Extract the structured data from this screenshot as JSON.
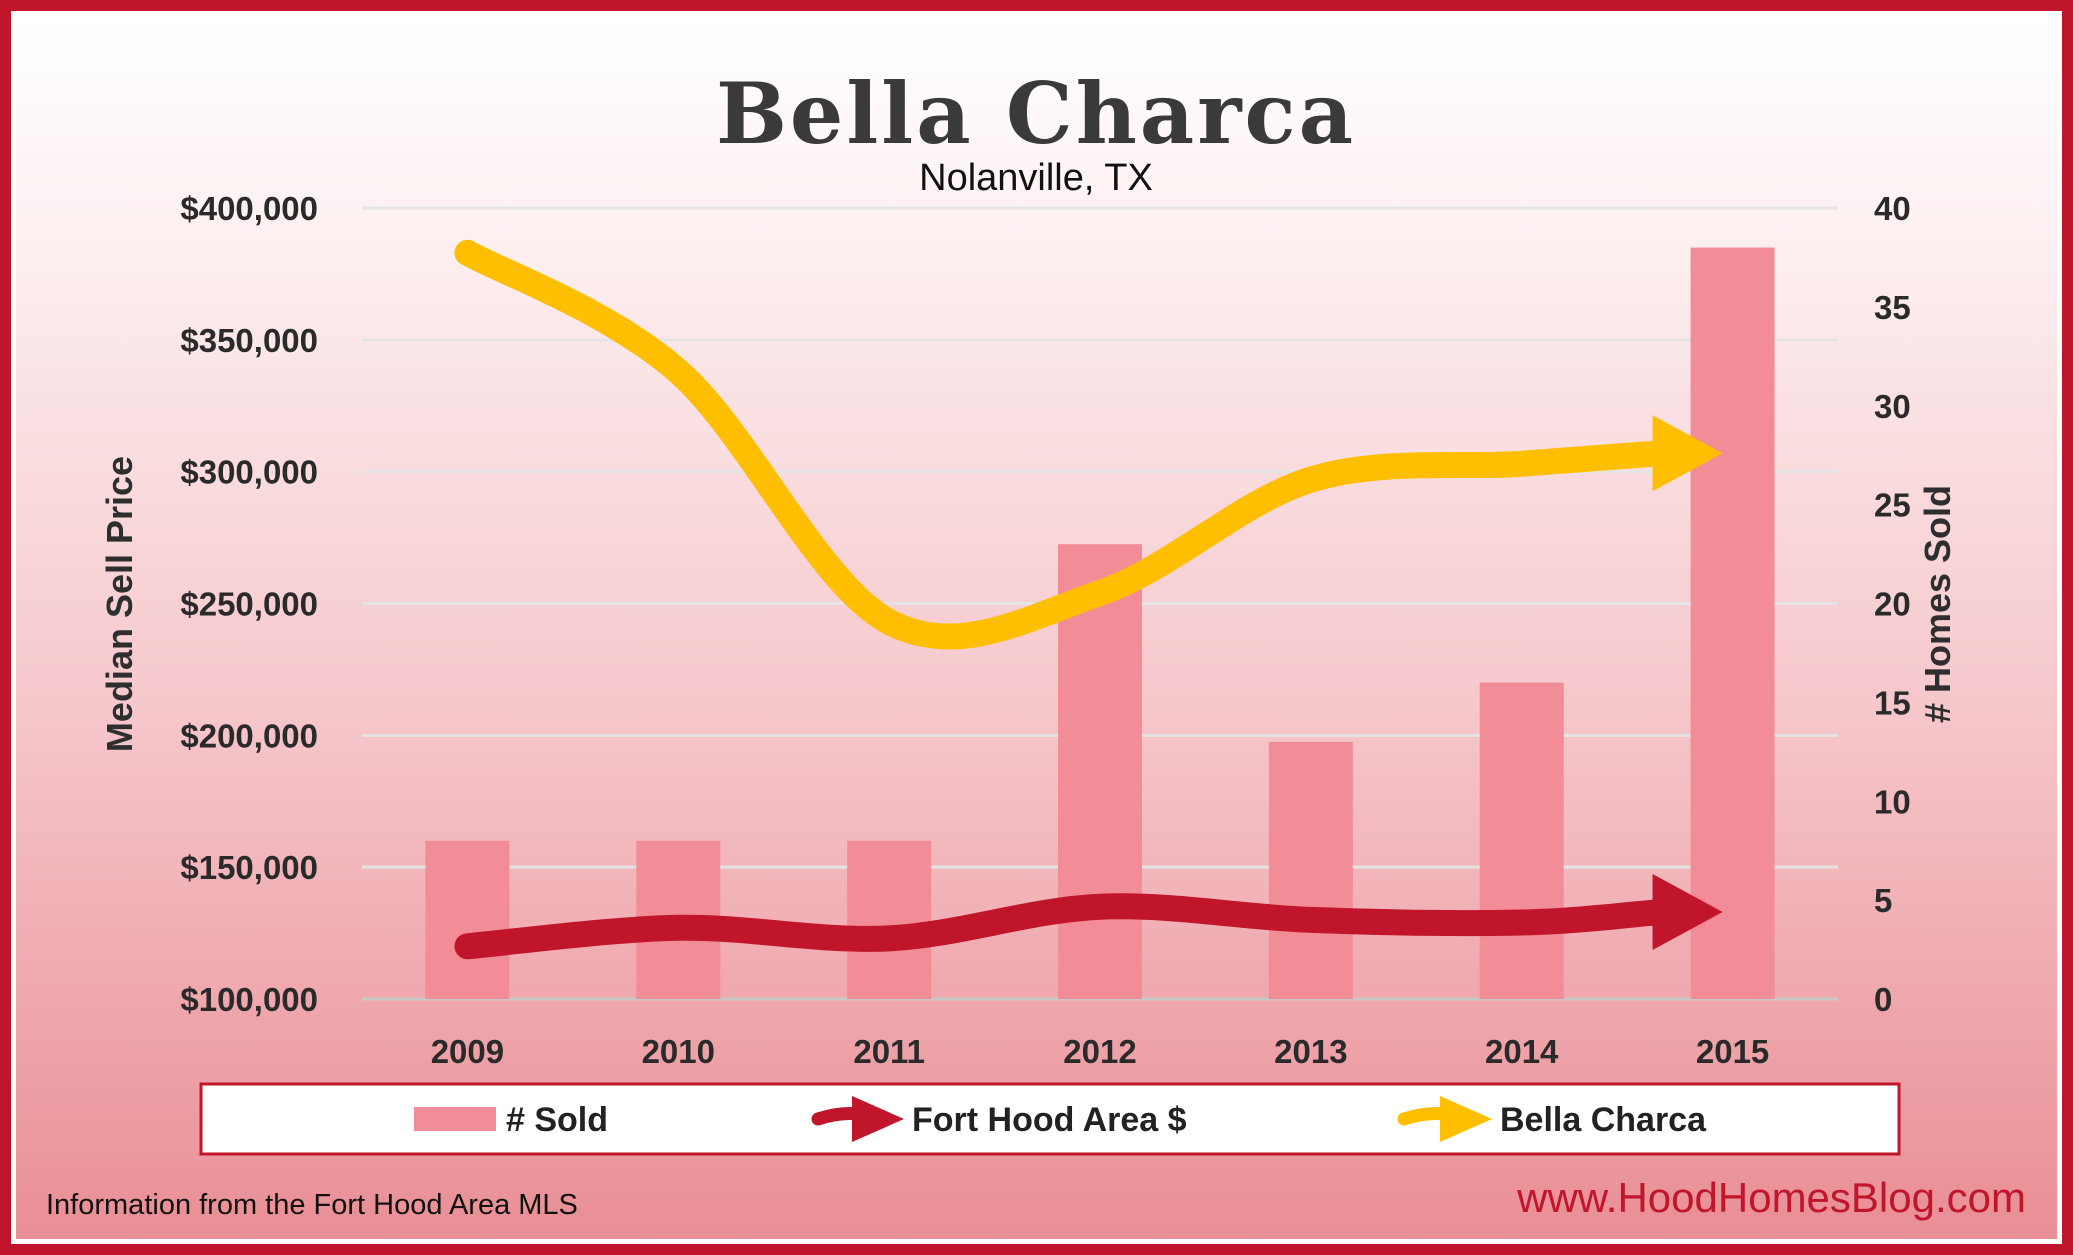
{
  "chart_data": {
    "type": "bar",
    "title": "Bella Charca",
    "subtitle": "Nolanville, TX",
    "categories": [
      "2009",
      "2010",
      "2011",
      "2012",
      "2013",
      "2014",
      "2015"
    ],
    "ylabel_left": "Median Sell Price",
    "ylabel_right": "# Homes Sold",
    "ylim_left": [
      100000,
      400000
    ],
    "ylim_right": [
      0,
      40
    ],
    "left_ticks": [
      "$100,000",
      "$150,000",
      "$200,000",
      "$250,000",
      "$300,000",
      "$350,000",
      "$400,000"
    ],
    "right_ticks": [
      "0",
      "5",
      "10",
      "15",
      "20",
      "25",
      "30",
      "35",
      "40"
    ],
    "grid": true,
    "series": [
      {
        "name": "# Sold",
        "type": "bar",
        "axis": "right",
        "color": "#f28d97",
        "values": [
          8,
          8,
          8,
          23,
          13,
          16,
          38
        ]
      },
      {
        "name": "Fort Hood Area $",
        "type": "line-arrow",
        "axis": "left",
        "color": "#c0152a",
        "values": [
          120000,
          127000,
          123000,
          135000,
          130000,
          129000,
          133000
        ]
      },
      {
        "name": "Bella Charca",
        "type": "line-arrow",
        "axis": "left",
        "color": "#ffbf00",
        "values": [
          383000,
          338000,
          243000,
          254000,
          297000,
          303000,
          307000
        ]
      }
    ],
    "legend_position": "bottom"
  },
  "footer": {
    "source": "Information from the Fort Hood Area MLS",
    "website": "www.HoodHomesBlog.com"
  }
}
